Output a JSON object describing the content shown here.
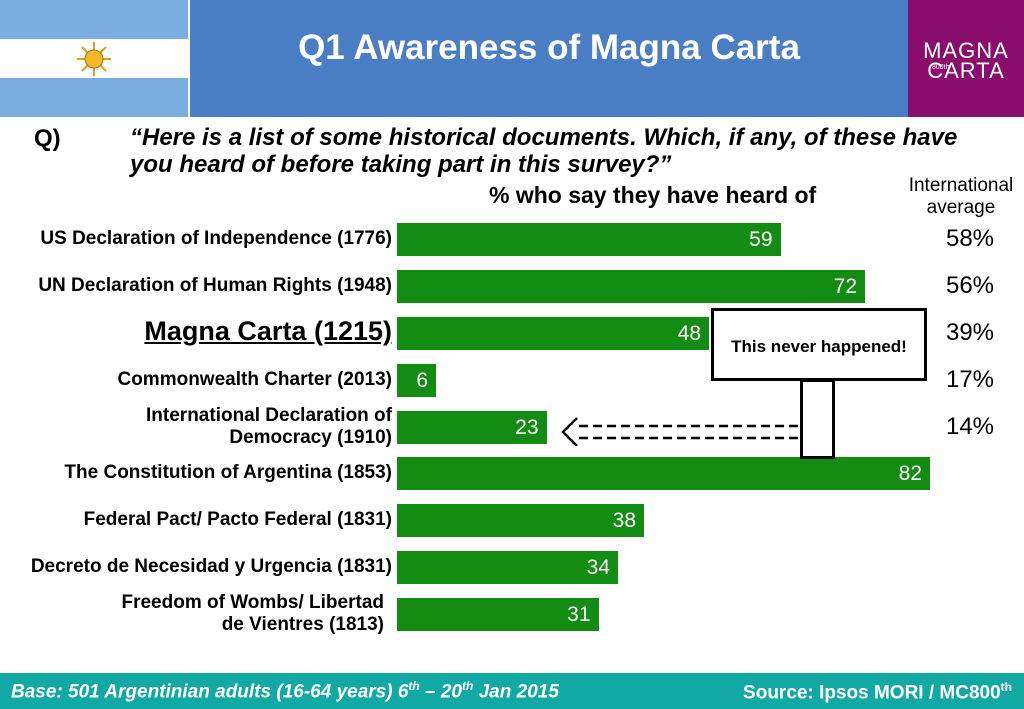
{
  "header": {
    "title": "Q1 Awareness of Magna Carta",
    "logo_line1": "MAGNA",
    "logo_line2": "CARTA",
    "logo_small": "800th"
  },
  "question": {
    "label": "Q)",
    "text": "“Here is a list of some historical documents. Which, if any, of these have you heard of before taking part in this survey?”",
    "measure_label": "% who say they have heard of",
    "intl_label": "International average"
  },
  "callout": {
    "text": "This never happened!"
  },
  "colors": {
    "bar": "#128c12",
    "header": "#4a7ec4",
    "logo": "#8a0c6d",
    "footer": "#12a9a4"
  },
  "chart_data": {
    "type": "bar",
    "orientation": "horizontal",
    "title": "% who say they have heard of",
    "xlim": [
      0,
      100
    ],
    "categories": [
      "US Declaration of Independence (1776)",
      "UN Declaration of Human Rights (1948)",
      "Magna Carta (1215)",
      "Commonwealth Charter (2013)",
      "International Declaration of Democracy (1910)",
      "The Constitution of Argentina (1853)",
      "Federal Pact/ Pacto Federal (1831)",
      "Decreto de Necesidad y  Urgencia (1831)",
      "Freedom of Wombs/ Libertad de Vientres (1813)"
    ],
    "category_lines": [
      [
        "US Declaration of Independence (1776)"
      ],
      [
        "UN Declaration of Human Rights (1948)"
      ],
      [
        "Magna Carta (1215)"
      ],
      [
        "Commonwealth Charter (2013)"
      ],
      [
        "International Declaration of",
        "Democracy (1910)"
      ],
      [
        "The Constitution of Argentina (1853)"
      ],
      [
        "Federal Pact/ Pacto Federal (1831)"
      ],
      [
        "Decreto de Necesidad y  Urgencia (1831)"
      ],
      [
        "Freedom of Wombs/ Libertad",
        "de Vientres (1813)"
      ]
    ],
    "values": [
      59,
      72,
      48,
      6,
      23,
      82,
      38,
      34,
      31
    ],
    "international_average": [
      "58%",
      "56%",
      "39%",
      "17%",
      "14%",
      null,
      null,
      null,
      null
    ]
  },
  "footer": {
    "base_text": "Base: 501 Argentinian adults (16-64 years) 6th – 20th Jan 2015",
    "source_text": "Source: Ipsos MORI / MC800th"
  }
}
